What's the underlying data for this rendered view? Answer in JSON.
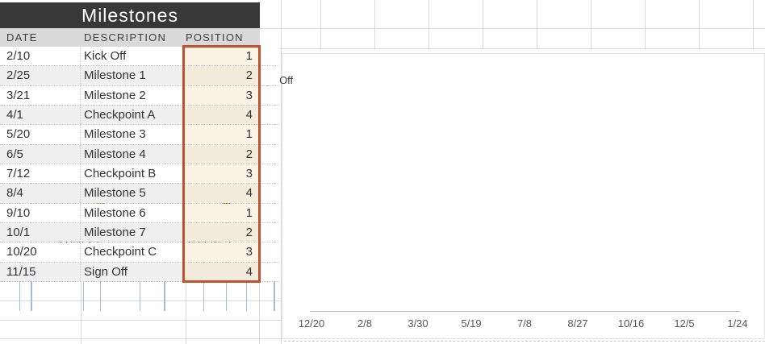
{
  "table": {
    "title": "Milestones",
    "columns": [
      "DATE",
      "DESCRIPTION",
      "POSITION"
    ],
    "rows": [
      {
        "date": "2/10",
        "description": "Kick Off",
        "position": 1
      },
      {
        "date": "2/25",
        "description": "Milestone 1",
        "position": 2
      },
      {
        "date": "3/21",
        "description": "Milestone 2",
        "position": 3
      },
      {
        "date": "4/1",
        "description": "Checkpoint A",
        "position": 4
      },
      {
        "date": "5/20",
        "description": "Milestone 3",
        "position": 1
      },
      {
        "date": "6/5",
        "description": "Milestone 4",
        "position": 2
      },
      {
        "date": "7/12",
        "description": "Checkpoint B",
        "position": 3
      },
      {
        "date": "8/4",
        "description": "Milestone 5",
        "position": 4
      },
      {
        "date": "9/10",
        "description": "Milestone 6",
        "position": 1
      },
      {
        "date": "10/1",
        "description": "Milestone 7",
        "position": 2
      },
      {
        "date": "10/20",
        "description": "Checkpoint C",
        "position": 3
      },
      {
        "date": "11/15",
        "description": "Sign Off",
        "position": 4
      }
    ]
  },
  "chart_data": {
    "type": "scatter",
    "subtype": "milestone-timeline-lollipop",
    "title": "",
    "xlabel": "",
    "ylabel": "",
    "grid": false,
    "legend": false,
    "ylim": [
      0,
      4.8
    ],
    "x_axis_ticks": [
      "12/20",
      "2/8",
      "3/30",
      "5/19",
      "7/8",
      "8/27",
      "10/16",
      "12/5",
      "1/24"
    ],
    "x_tick_interval_days": 50,
    "points": [
      {
        "label": "Kick Off",
        "date": "2/10",
        "position": 1,
        "color": "#4472C4"
      },
      {
        "label": "Milestone 1",
        "date": "2/25",
        "position": 2,
        "color": "#ED7D31"
      },
      {
        "label": "Milestone 2",
        "date": "3/21",
        "position": 3,
        "color": "#A5A5A5"
      },
      {
        "label": "Checkpoint A",
        "date": "4/1",
        "position": 4,
        "color": "#FFC000"
      },
      {
        "label": "Milestone 3",
        "date": "5/20",
        "position": 1,
        "color": "#5B9BD5"
      },
      {
        "label": "Milestone 4",
        "date": "6/5",
        "position": 2,
        "color": "#70AD47"
      },
      {
        "label": "Checkpoint B",
        "date": "7/12",
        "position": 3,
        "color": "#264478"
      },
      {
        "label": "Milestone 5",
        "date": "8/4",
        "position": 4,
        "color": "#9E480E"
      },
      {
        "label": "Milestone 6",
        "date": "9/10",
        "position": 1,
        "color": "#636363"
      },
      {
        "label": "Milestone 7",
        "date": "10/1",
        "position": 2,
        "color": "#997300"
      },
      {
        "label": "Checkpoint C",
        "date": "10/20",
        "position": 3,
        "color": "#255E91"
      },
      {
        "label": "Sign Off",
        "date": "11/15",
        "position": 4,
        "color": "#43682B"
      }
    ]
  },
  "colors": {
    "title_bg": "#383838",
    "title_text": "#FFFFFF",
    "header_bg": "#D9D9D9",
    "row_band": "#EFEFEF",
    "position_fill": "#FDF3E5",
    "position_fill_alt": "#F3EBDB",
    "selection_border": "#C0512E",
    "stem": "#A4BCE0",
    "axis_line": "#BFBFBF",
    "axis_text": "#595959",
    "label_text": "#404040"
  }
}
